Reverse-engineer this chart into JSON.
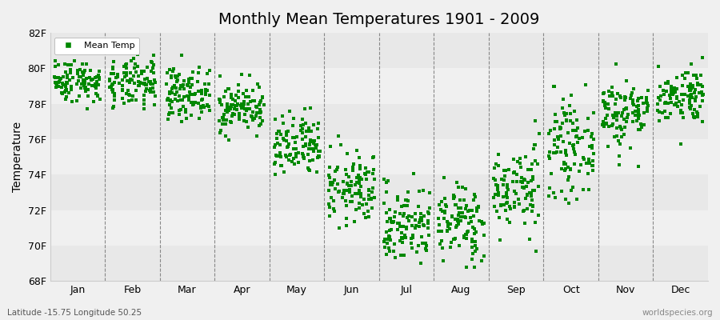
{
  "title": "Monthly Mean Temperatures 1901 - 2009",
  "ylabel": "Temperature",
  "subtitle_left": "Latitude -15.75 Longitude 50.25",
  "subtitle_right": "worldspecies.org",
  "ylim": [
    68,
    82
  ],
  "yticks": [
    68,
    70,
    72,
    74,
    76,
    78,
    80,
    82
  ],
  "ytick_labels": [
    "68F",
    "70F",
    "72F",
    "74F",
    "76F",
    "78F",
    "80F",
    "82F"
  ],
  "months": [
    "Jan",
    "Feb",
    "Mar",
    "Apr",
    "May",
    "Jun",
    "Jul",
    "Aug",
    "Sep",
    "Oct",
    "Nov",
    "Dec"
  ],
  "marker_color": "#008800",
  "marker": "s",
  "marker_size": 2.5,
  "legend_label": "Mean Temp",
  "band_colors": [
    "#e8e8e8",
    "#f0f0f0"
  ],
  "bg_color": "#f0f0f0",
  "n_years": 109,
  "monthly_means": [
    79.3,
    79.1,
    78.6,
    77.8,
    75.5,
    73.2,
    71.2,
    71.3,
    73.2,
    75.5,
    77.5,
    78.5
  ],
  "monthly_stds": [
    0.6,
    0.7,
    0.7,
    0.7,
    0.9,
    1.0,
    1.1,
    1.1,
    1.2,
    1.3,
    1.0,
    0.8
  ],
  "seed": 42,
  "figsize": [
    9.0,
    4.0
  ],
  "dpi": 100
}
